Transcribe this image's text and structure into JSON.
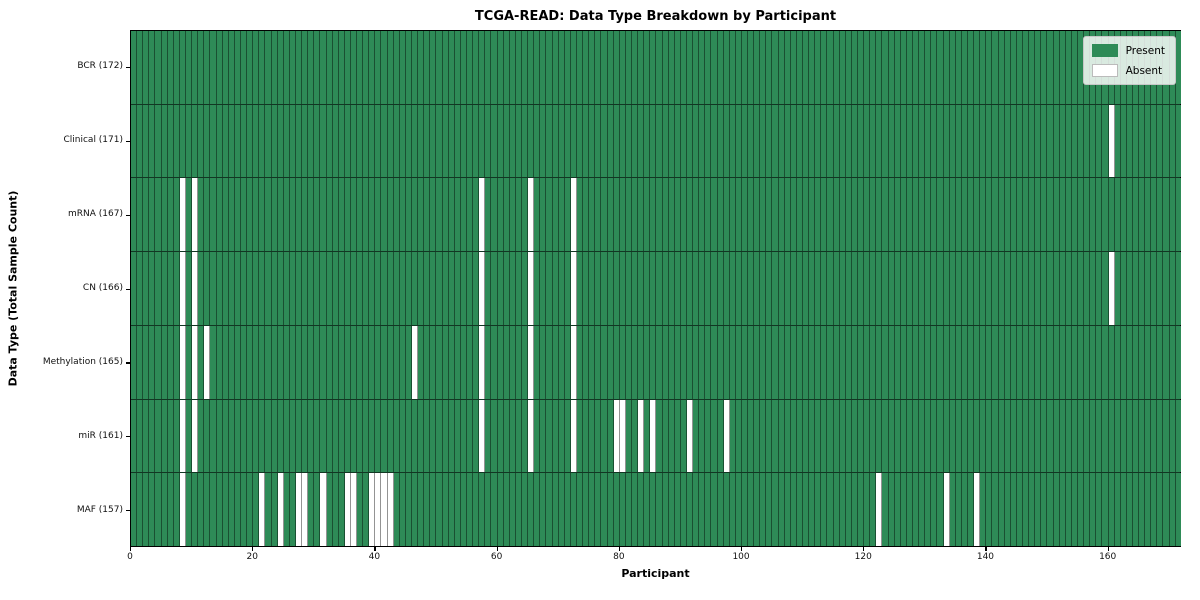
{
  "title": "TCGA-READ: Data Type Breakdown by Participant",
  "xlabel": "Participant",
  "ylabel": "Data Type (Total Sample Count)",
  "legend": {
    "present_label": "Present",
    "absent_label": "Absent"
  },
  "colors": {
    "present": "#2e8b57",
    "absent": "#ffffff",
    "cell_edge": "rgba(0,0,0,0.42)",
    "row_edge": "rgba(0,0,0,0.60)"
  },
  "chart_data": {
    "type": "heatmap",
    "title": "TCGA-READ: Data Type Breakdown by Participant",
    "xlabel": "Participant",
    "ylabel": "Data Type (Total Sample Count)",
    "legend_entries": [
      "Present",
      "Absent"
    ],
    "legend_position": "upper right",
    "n_participants": 172,
    "x_range": [
      0,
      172
    ],
    "x_ticks": [
      0,
      20,
      40,
      60,
      80,
      100,
      120,
      140,
      160
    ],
    "value_encoding": {
      "present": 1,
      "absent": 0
    },
    "rows": [
      {
        "name": "BCR",
        "label": "BCR (172)",
        "total": 172,
        "absent_participants": []
      },
      {
        "name": "Clinical",
        "label": "Clinical (171)",
        "total": 171,
        "absent_participants": [
          160
        ]
      },
      {
        "name": "mRNA",
        "label": "mRNA (167)",
        "total": 167,
        "absent_participants": [
          8,
          10,
          57,
          65,
          72
        ]
      },
      {
        "name": "CN",
        "label": "CN (166)",
        "total": 166,
        "absent_participants": [
          8,
          10,
          57,
          65,
          72,
          160
        ]
      },
      {
        "name": "Methylation",
        "label": "Methylation (165)",
        "total": 165,
        "absent_participants": [
          8,
          10,
          12,
          46,
          57,
          65,
          72
        ]
      },
      {
        "name": "miR",
        "label": "miR (161)",
        "total": 161,
        "absent_participants": [
          8,
          10,
          57,
          65,
          72,
          79,
          80,
          83,
          85,
          91,
          97
        ]
      },
      {
        "name": "MAF",
        "label": "MAF (157)",
        "total": 157,
        "absent_participants": [
          8,
          21,
          24,
          27,
          28,
          31,
          35,
          36,
          39,
          40,
          41,
          42,
          122,
          133,
          138
        ]
      }
    ]
  }
}
